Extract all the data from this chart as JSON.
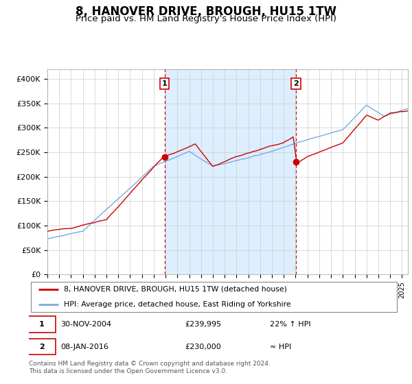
{
  "title": "8, HANOVER DRIVE, BROUGH, HU15 1TW",
  "subtitle": "Price paid vs. HM Land Registry's House Price Index (HPI)",
  "title_fontsize": 12,
  "subtitle_fontsize": 9.5,
  "bg_color": "#ffffff",
  "grid_color": "#cccccc",
  "shaded_color": "#ddeeff",
  "red_line_color": "#cc0000",
  "blue_line_color": "#7aaadd",
  "dashed_color": "#cc0000",
  "ylim": [
    0,
    420000
  ],
  "yticks": [
    0,
    50000,
    100000,
    150000,
    200000,
    250000,
    300000,
    350000,
    400000
  ],
  "ytick_labels": [
    "£0",
    "£50K",
    "£100K",
    "£150K",
    "£200K",
    "£250K",
    "£300K",
    "£350K",
    "£400K"
  ],
  "transaction1": {
    "date": "30-NOV-2004",
    "price": 239995,
    "label": "1",
    "x_year": 2004.92
  },
  "transaction2": {
    "date": "08-JAN-2016",
    "price": 230000,
    "label": "2",
    "x_year": 2016.03
  },
  "legend_line1": "8, HANOVER DRIVE, BROUGH, HU15 1TW (detached house)",
  "legend_line2": "HPI: Average price, detached house, East Riding of Yorkshire",
  "footer": "Contains HM Land Registry data © Crown copyright and database right 2024.\nThis data is licensed under the Open Government Licence v3.0.",
  "xmin": 1995,
  "xmax": 2025.5
}
